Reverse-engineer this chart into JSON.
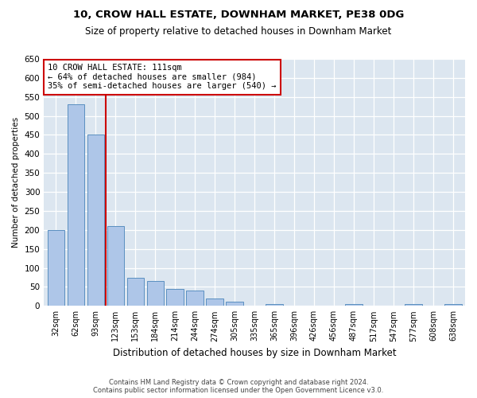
{
  "title": "10, CROW HALL ESTATE, DOWNHAM MARKET, PE38 0DG",
  "subtitle": "Size of property relative to detached houses in Downham Market",
  "xlabel": "Distribution of detached houses by size in Downham Market",
  "ylabel": "Number of detached properties",
  "categories": [
    "32sqm",
    "62sqm",
    "93sqm",
    "123sqm",
    "153sqm",
    "184sqm",
    "214sqm",
    "244sqm",
    "274sqm",
    "305sqm",
    "335sqm",
    "365sqm",
    "396sqm",
    "426sqm",
    "456sqm",
    "487sqm",
    "517sqm",
    "547sqm",
    "577sqm",
    "608sqm",
    "638sqm"
  ],
  "values": [
    200,
    530,
    450,
    210,
    75,
    65,
    45,
    40,
    20,
    12,
    0,
    5,
    0,
    0,
    0,
    5,
    0,
    0,
    5,
    0,
    5
  ],
  "bar_color": "#aec6e8",
  "bar_edge_color": "#5a8fc0",
  "vline_x": 2.5,
  "vline_color": "#cc0000",
  "annotation_text": "10 CROW HALL ESTATE: 111sqm\n← 64% of detached houses are smaller (984)\n35% of semi-detached houses are larger (540) →",
  "annotation_box_color": "#ffffff",
  "annotation_box_edge": "#cc0000",
  "background_color": "#dce6f0",
  "ylim": [
    0,
    650
  ],
  "yticks": [
    0,
    50,
    100,
    150,
    200,
    250,
    300,
    350,
    400,
    450,
    500,
    550,
    600,
    650
  ],
  "footer_line1": "Contains HM Land Registry data © Crown copyright and database right 2024.",
  "footer_line2": "Contains public sector information licensed under the Open Government Licence v3.0."
}
